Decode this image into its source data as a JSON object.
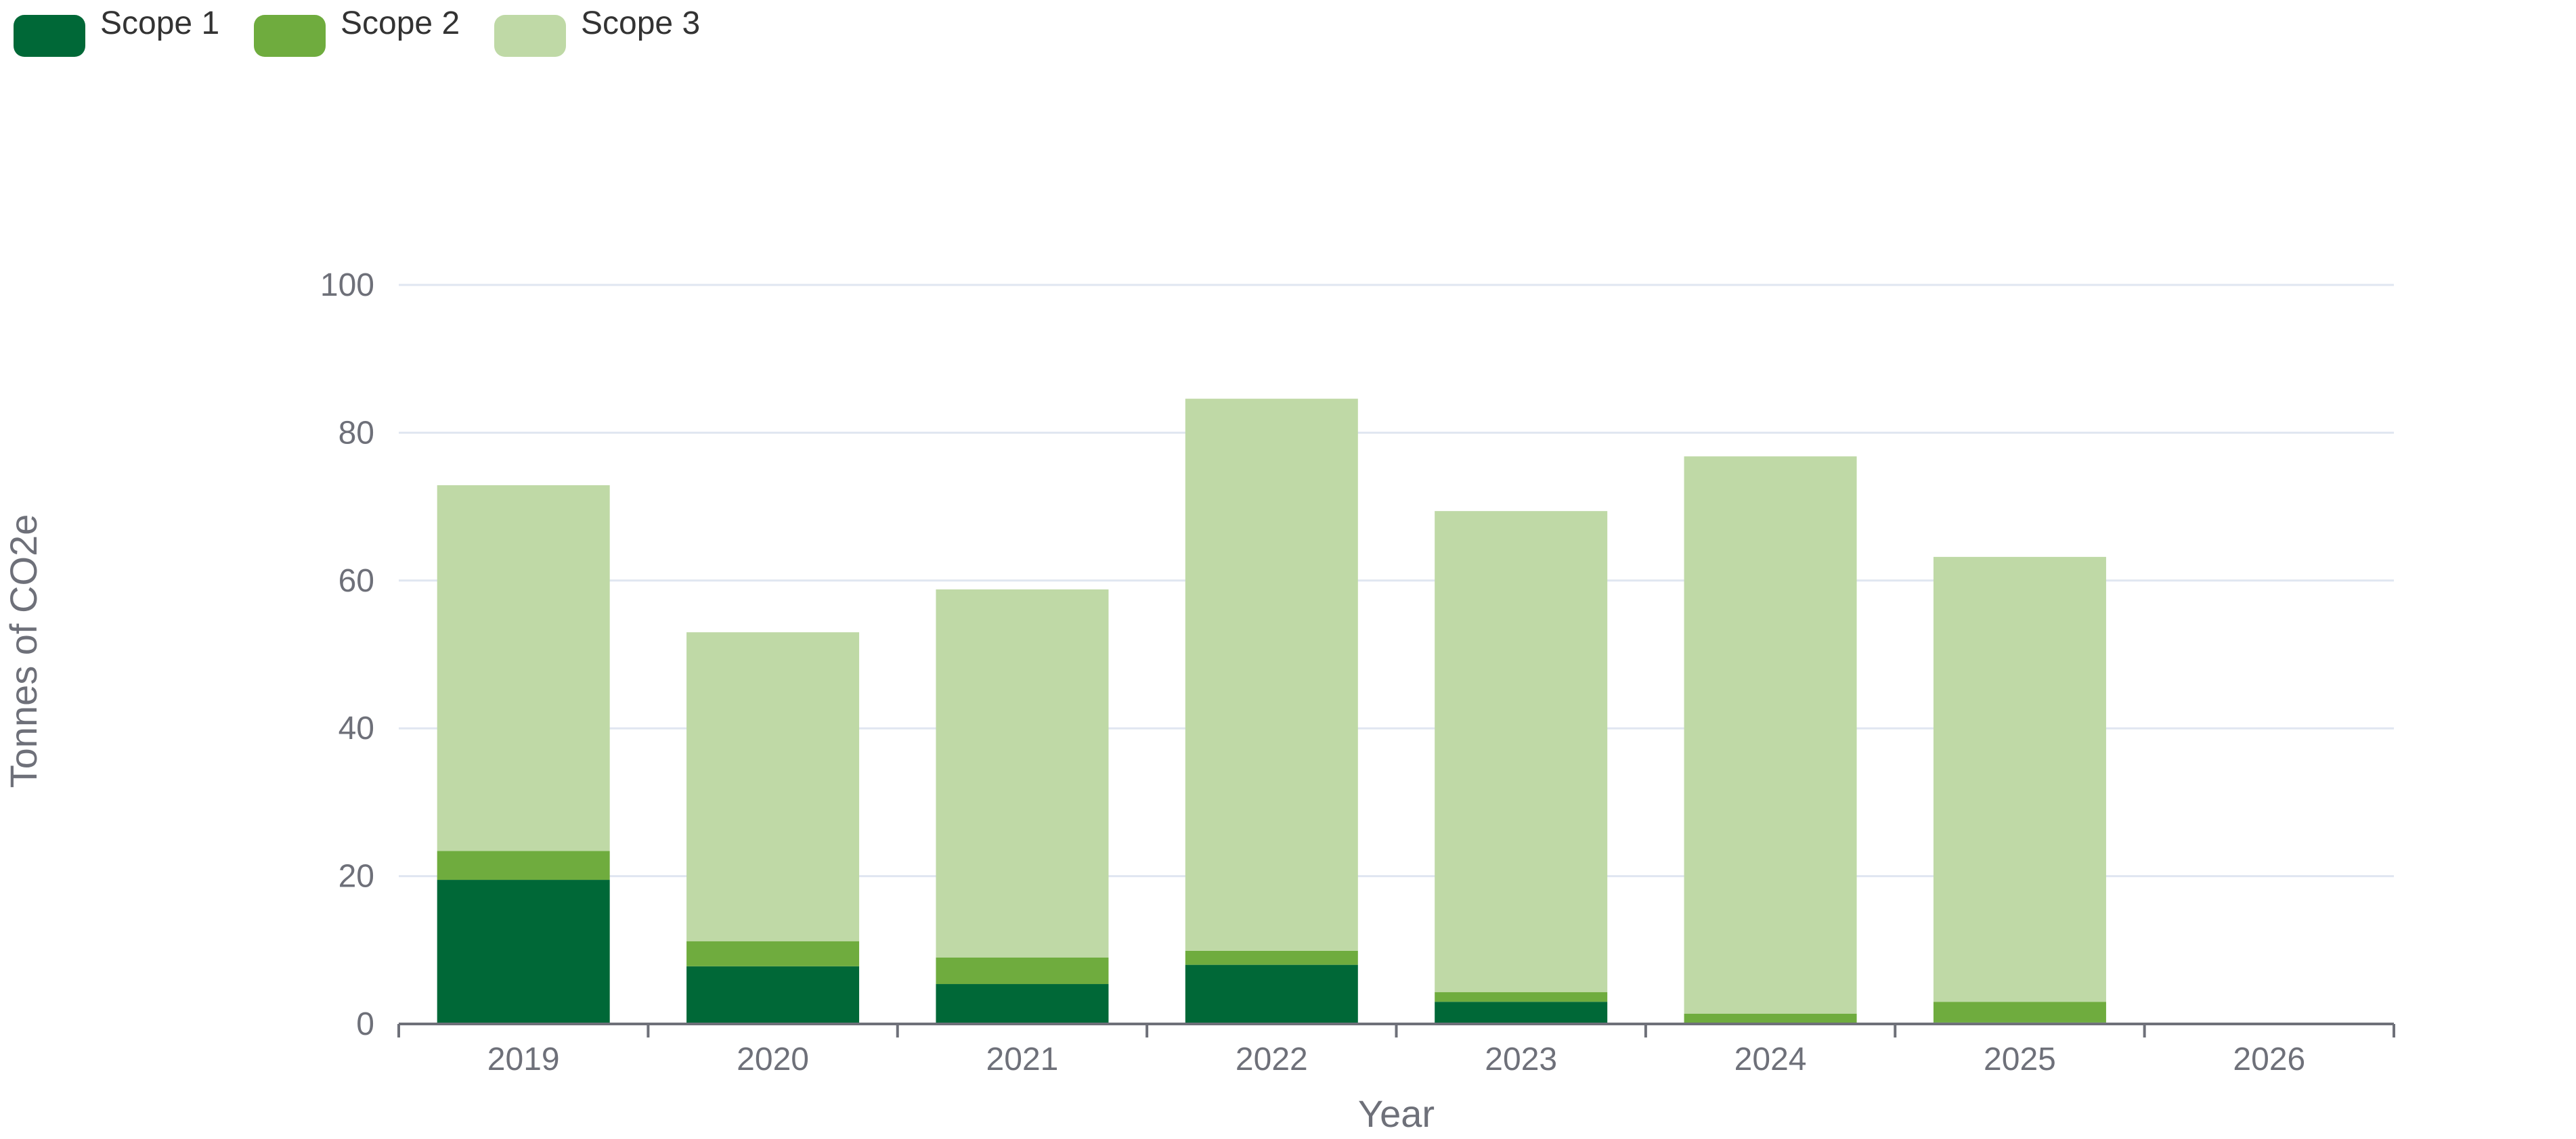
{
  "chart_data": {
    "type": "bar",
    "stacked": true,
    "categories": [
      "2019",
      "2020",
      "2021",
      "2022",
      "2023",
      "2024",
      "2025",
      "2026"
    ],
    "series": [
      {
        "name": "Scope 1",
        "color": "#006837",
        "values": [
          19.5,
          7.8,
          5.4,
          8.0,
          3.0,
          0.0,
          0.2,
          0
        ]
      },
      {
        "name": "Scope 2",
        "color": "#6fac3e",
        "values": [
          3.9,
          3.4,
          3.6,
          1.9,
          1.3,
          1.4,
          2.8,
          0
        ]
      },
      {
        "name": "Scope 3",
        "color": "#bfd9a6",
        "values": [
          49.5,
          41.8,
          49.8,
          74.7,
          65.1,
          75.4,
          60.2,
          0
        ]
      }
    ],
    "y_ticks": [
      "0",
      "20",
      "40",
      "60",
      "80",
      "100"
    ],
    "xlabel": "Year",
    "ylabel": "Tonnes of CO2e",
    "ylim": [
      0,
      100
    ],
    "grid": true,
    "legend_position": "top-left"
  }
}
